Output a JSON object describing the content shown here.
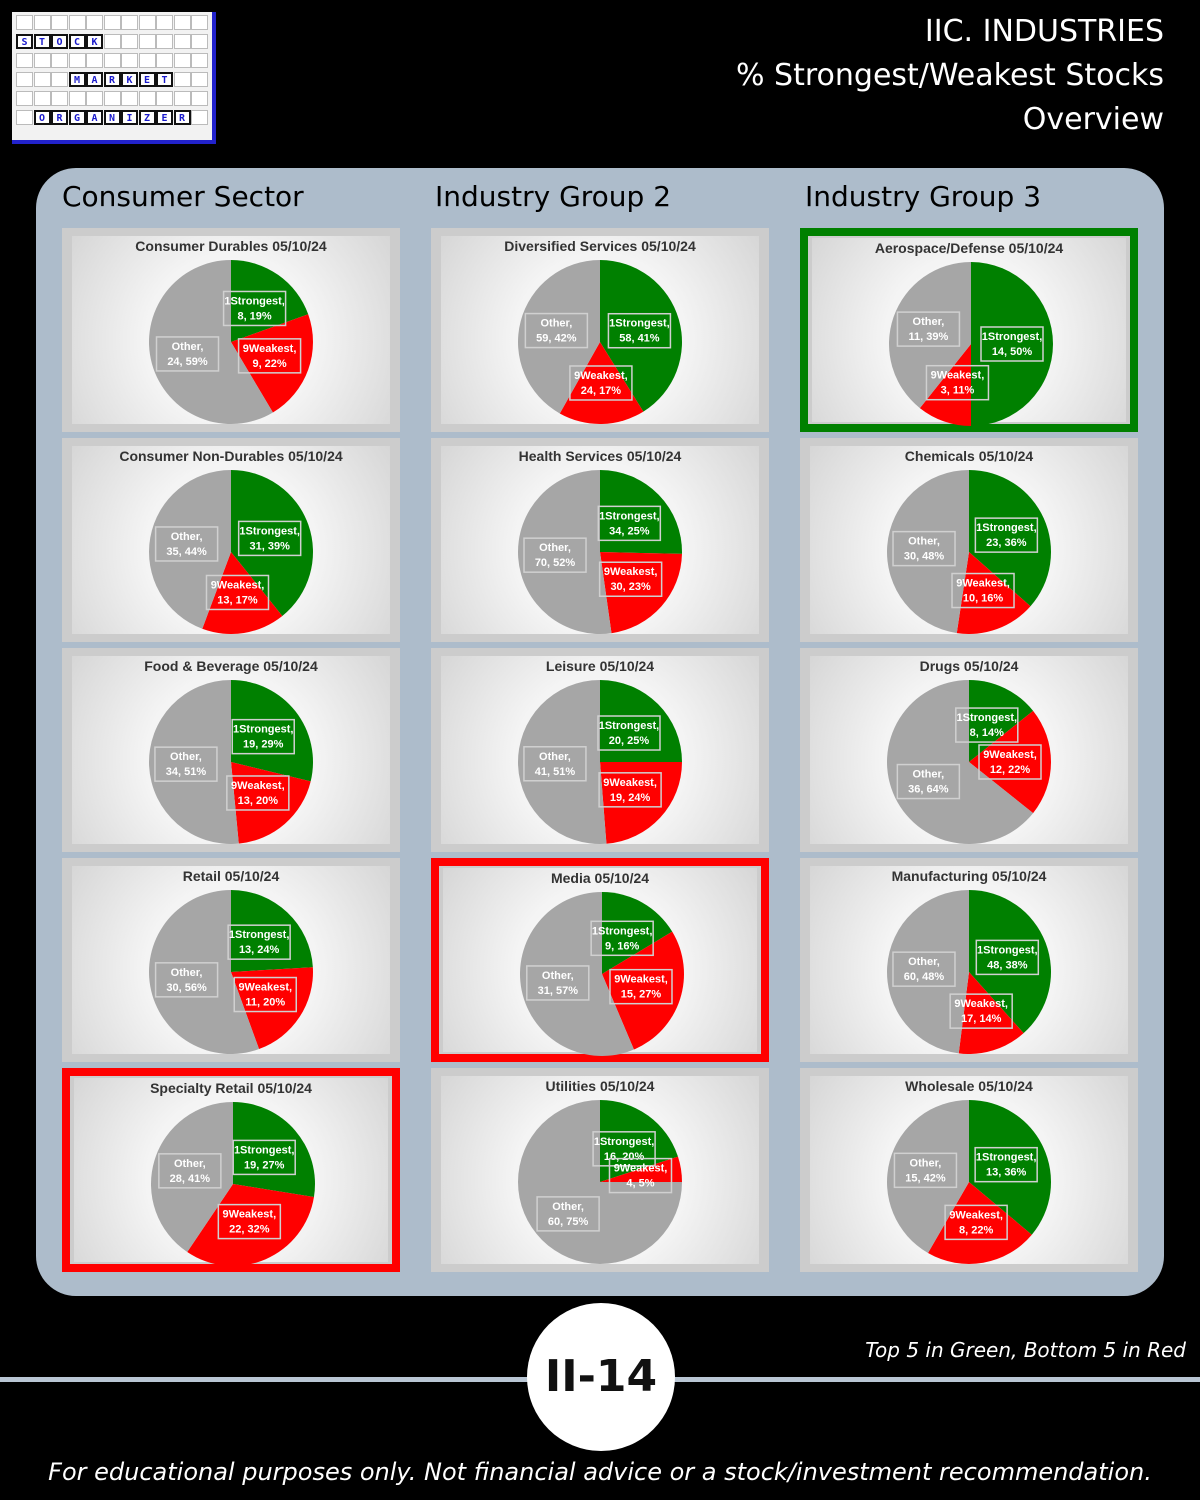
{
  "header": {
    "line1": "IIC. INDUSTRIES",
    "line2": "% Strongest/Weakest Stocks",
    "line3": "Overview"
  },
  "logo": {
    "row1": "STOCK",
    "row2": "MARKET",
    "row3": "ORGANIZER"
  },
  "columns": [
    "Consumer Sector",
    "Industry Group 2",
    "Industry Group 3"
  ],
  "colors": {
    "strong": "#008000",
    "weak": "#ff0000",
    "other": "#a6a6a6",
    "top5": "#008000",
    "bottom5": "#ff0000"
  },
  "chart_data": [
    {
      "type": "pie",
      "title": "Consumer Durables 05/10/24",
      "highlight": "",
      "categories": [
        "1Strongest",
        "9Weakest",
        "Other"
      ],
      "values": [
        8,
        9,
        24
      ],
      "labels": [
        "1Strongest,\n8, 19%",
        "9Weakest,\n9, 22%",
        "Other,\n24, 59%"
      ]
    },
    {
      "type": "pie",
      "title": "Diversified Services 05/10/24",
      "highlight": "",
      "categories": [
        "1Strongest",
        "9Weakest",
        "Other"
      ],
      "values": [
        58,
        24,
        59
      ],
      "labels": [
        "1Strongest,\n58, 41%",
        "9Weakest,\n24, 17%",
        "Other,\n59, 42%"
      ]
    },
    {
      "type": "pie",
      "title": "Aerospace/Defense 05/10/24",
      "highlight": "top5",
      "categories": [
        "1Strongest",
        "9Weakest",
        "Other"
      ],
      "values": [
        14,
        3,
        11
      ],
      "labels": [
        "1Strongest,\n14, 50%",
        "9Weakest,\n3, 11%",
        "Other,\n11, 39%"
      ]
    },
    {
      "type": "pie",
      "title": "Consumer Non-Durables 05/10/24",
      "highlight": "",
      "categories": [
        "1Strongest",
        "9Weakest",
        "Other"
      ],
      "values": [
        31,
        13,
        35
      ],
      "labels": [
        "1Strongest,\n31, 39%",
        "9Weakest,\n13, 17%",
        "Other,\n35, 44%"
      ]
    },
    {
      "type": "pie",
      "title": "Health Services 05/10/24",
      "highlight": "",
      "categories": [
        "1Strongest",
        "9Weakest",
        "Other"
      ],
      "values": [
        34,
        30,
        70
      ],
      "labels": [
        "1Strongest,\n34, 25%",
        "9Weakest,\n30, 23%",
        "Other,\n70, 52%"
      ]
    },
    {
      "type": "pie",
      "title": "Chemicals 05/10/24",
      "highlight": "",
      "categories": [
        "1Strongest",
        "9Weakest",
        "Other"
      ],
      "values": [
        23,
        10,
        30
      ],
      "labels": [
        "1Strongest,\n23, 36%",
        "9Weakest,\n10, 16%",
        "Other,\n30, 48%"
      ]
    },
    {
      "type": "pie",
      "title": "Food & Beverage 05/10/24",
      "highlight": "",
      "categories": [
        "1Strongest",
        "9Weakest",
        "Other"
      ],
      "values": [
        19,
        13,
        34
      ],
      "labels": [
        "1Strongest,\n19, 29%",
        "9Weakest,\n13, 20%",
        "Other,\n34, 51%"
      ]
    },
    {
      "type": "pie",
      "title": "Leisure 05/10/24",
      "highlight": "",
      "categories": [
        "1Strongest",
        "9Weakest",
        "Other"
      ],
      "values": [
        20,
        19,
        41
      ],
      "labels": [
        "1Strongest,\n20, 25%",
        "9Weakest,\n19, 24%",
        "Other,\n41, 51%"
      ]
    },
    {
      "type": "pie",
      "title": "Drugs 05/10/24",
      "highlight": "",
      "categories": [
        "1Strongest",
        "9Weakest",
        "Other"
      ],
      "values": [
        8,
        12,
        36
      ],
      "labels": [
        "1Strongest,\n8, 14%",
        "9Weakest,\n12, 22%",
        "Other,\n36, 64%"
      ]
    },
    {
      "type": "pie",
      "title": "Retail 05/10/24",
      "highlight": "",
      "categories": [
        "1Strongest",
        "9Weakest",
        "Other"
      ],
      "values": [
        13,
        11,
        30
      ],
      "labels": [
        "1Strongest,\n13, 24%",
        "9Weakest,\n11, 20%",
        "Other,\n30, 56%"
      ]
    },
    {
      "type": "pie",
      "title": "Media 05/10/24",
      "highlight": "bottom5",
      "categories": [
        "1Strongest",
        "9Weakest",
        "Other"
      ],
      "values": [
        9,
        15,
        31
      ],
      "labels": [
        "1Strongest,\n9, 16%",
        "9Weakest,\n15, 27%",
        "Other,\n31, 57%"
      ]
    },
    {
      "type": "pie",
      "title": "Manufacturing 05/10/24",
      "highlight": "",
      "categories": [
        "1Strongest",
        "9Weakest",
        "Other"
      ],
      "values": [
        48,
        17,
        60
      ],
      "labels": [
        "1Strongest,\n48, 38%",
        "9Weakest,\n17, 14%",
        "Other,\n60, 48%"
      ]
    },
    {
      "type": "pie",
      "title": "Specialty Retail 05/10/24",
      "highlight": "bottom5",
      "categories": [
        "1Strongest",
        "9Weakest",
        "Other"
      ],
      "values": [
        19,
        22,
        28
      ],
      "labels": [
        "1Strongest,\n19, 27%",
        "9Weakest,\n22, 32%",
        "Other,\n28, 41%"
      ]
    },
    {
      "type": "pie",
      "title": "Utilities 05/10/24",
      "highlight": "",
      "categories": [
        "1Strongest",
        "9Weakest",
        "Other"
      ],
      "values": [
        16,
        4,
        60
      ],
      "labels": [
        "1Strongest,\n16, 20%",
        "9Weakest,\n4, 5%",
        "Other,\n60, 75%"
      ]
    },
    {
      "type": "pie",
      "title": "Wholesale 05/10/24",
      "highlight": "",
      "categories": [
        "1Strongest",
        "9Weakest",
        "Other"
      ],
      "values": [
        13,
        8,
        15
      ],
      "labels": [
        "1Strongest,\n13, 36%",
        "9Weakest,\n8, 22%",
        "Other,\n15, 42%"
      ]
    }
  ],
  "footer": {
    "note": "Top 5 in Green, Bottom 5 in Red",
    "badge": "II-14",
    "disclaimer": "For educational purposes only. Not financial advice or a stock/investment recommendation."
  }
}
